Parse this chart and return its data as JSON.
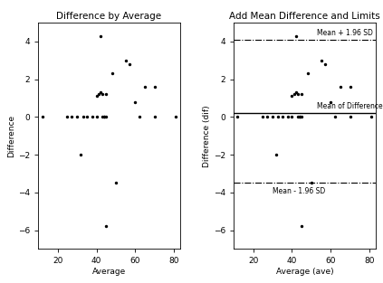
{
  "title_left": "Difference by Average",
  "title_right": "Add Mean Difference and Limits",
  "xlabel_left": "Average",
  "xlabel_right": "Average (ave)",
  "ylabel_left": "Difference",
  "ylabel_right": "Difference (dif)",
  "xlim": [
    10,
    83
  ],
  "ylim": [
    -7.0,
    5.0
  ],
  "xticks": [
    20,
    40,
    60,
    80
  ],
  "yticks": [
    -6,
    -4,
    -2,
    0,
    2,
    4
  ],
  "mean_diff": 0.2,
  "upper_limit": 4.1,
  "lower_limit": -3.5,
  "points_x": [
    12,
    25,
    27,
    30,
    32,
    33,
    35,
    38,
    40,
    40,
    41,
    42,
    42,
    43,
    43,
    44,
    44,
    45,
    45,
    45,
    48,
    50,
    55,
    57,
    60,
    62,
    65,
    70,
    70,
    81
  ],
  "points_y": [
    0,
    0,
    0,
    0,
    -2,
    0,
    0,
    0,
    0,
    1.1,
    1.2,
    4.3,
    1.3,
    1.2,
    0,
    0,
    0,
    1.2,
    -5.8,
    0,
    2.3,
    -3.5,
    3.0,
    2.8,
    0.8,
    0,
    1.6,
    1.6,
    0,
    0
  ],
  "dot_color": "black",
  "dot_size": 6,
  "font_size": 6.5,
  "title_font_size": 7.5,
  "annotation_font_size": 5.5,
  "upper_label": "Mean + 1.96 SD",
  "mean_label": "Mean of Differences",
  "lower_label": "Mean - 1.96 SD"
}
